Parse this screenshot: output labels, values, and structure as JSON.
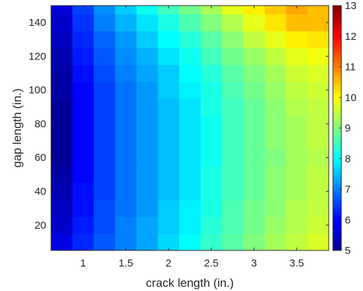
{
  "chart_data": {
    "type": "heatmap",
    "title": "",
    "xlabel": "crack length (in.)",
    "ylabel": "gap length (in.)",
    "xlim": [
      0.625,
      3.875
    ],
    "ylim": [
      5,
      150
    ],
    "x_ticks": [
      1,
      1.5,
      2,
      2.5,
      3,
      3.5
    ],
    "x_tick_labels": [
      "1",
      "1.5",
      "2",
      "2.5",
      "3",
      "3.5"
    ],
    "y_ticks": [
      20,
      40,
      60,
      80,
      100,
      120,
      140
    ],
    "y_tick_labels": [
      "20",
      "40",
      "60",
      "80",
      "100",
      "120",
      "140"
    ],
    "x": [
      0.75,
      1.0,
      1.25,
      1.5,
      1.75,
      2.0,
      2.25,
      2.5,
      2.75,
      3.0,
      3.25,
      3.5,
      3.75
    ],
    "y": [
      10,
      20,
      30,
      40,
      50,
      60,
      70,
      80,
      90,
      100,
      110,
      120,
      130,
      140,
      150
    ],
    "z": [
      [
        5.8,
        6.3,
        6.7,
        7.0,
        7.3,
        7.7,
        8.0,
        8.4,
        8.7,
        9.0,
        9.3,
        9.5,
        9.7
      ],
      [
        5.6,
        6.2,
        6.6,
        7.0,
        7.3,
        7.6,
        7.9,
        8.3,
        8.6,
        8.9,
        9.2,
        9.4,
        9.6
      ],
      [
        5.5,
        6.1,
        6.6,
        6.9,
        7.2,
        7.6,
        7.9,
        8.2,
        8.6,
        8.9,
        9.1,
        9.4,
        9.5
      ],
      [
        5.4,
        6.1,
        6.5,
        6.9,
        7.2,
        7.5,
        7.8,
        8.2,
        8.5,
        8.8,
        9.1,
        9.3,
        9.5
      ],
      [
        5.3,
        6.0,
        6.5,
        6.9,
        7.2,
        7.5,
        7.8,
        8.2,
        8.5,
        8.8,
        9.1,
        9.3,
        9.5
      ],
      [
        5.2,
        6.0,
        6.5,
        6.9,
        7.2,
        7.5,
        7.8,
        8.1,
        8.5,
        8.8,
        9.0,
        9.3,
        9.4
      ],
      [
        5.2,
        6.0,
        6.5,
        6.9,
        7.2,
        7.5,
        7.8,
        8.1,
        8.5,
        8.8,
        9.1,
        9.3,
        9.5
      ],
      [
        5.2,
        6.0,
        6.5,
        6.9,
        7.2,
        7.5,
        7.8,
        8.1,
        8.5,
        8.8,
        9.1,
        9.3,
        9.5
      ],
      [
        5.2,
        6.0,
        6.5,
        6.9,
        7.2,
        7.5,
        7.8,
        8.2,
        8.5,
        8.8,
        9.1,
        9.4,
        9.5
      ],
      [
        5.3,
        6.0,
        6.5,
        6.9,
        7.2,
        7.6,
        7.9,
        8.2,
        8.6,
        8.9,
        9.2,
        9.5,
        9.6
      ],
      [
        5.3,
        6.1,
        6.6,
        7.0,
        7.3,
        7.6,
        8.0,
        8.3,
        8.7,
        9.0,
        9.3,
        9.6,
        9.7
      ],
      [
        5.4,
        6.2,
        6.7,
        7.1,
        7.4,
        7.8,
        8.1,
        8.5,
        8.9,
        9.2,
        9.5,
        9.8,
        9.9
      ],
      [
        5.5,
        6.3,
        6.8,
        7.2,
        7.6,
        8.0,
        8.3,
        8.7,
        9.1,
        9.5,
        9.8,
        10.1,
        10.2
      ],
      [
        5.6,
        6.4,
        7.0,
        7.4,
        7.8,
        8.2,
        8.6,
        9.0,
        9.4,
        9.8,
        10.2,
        10.5,
        10.5
      ],
      [
        5.7,
        6.5,
        7.1,
        7.6,
        8.1,
        8.5,
        8.9,
        9.3,
        9.8,
        10.1,
        10.4,
        10.7,
        10.5
      ]
    ],
    "colorbar": {
      "colormap": "jet",
      "min": 5,
      "max": 13,
      "ticks": [
        5,
        6,
        7,
        8,
        9,
        10,
        11,
        12,
        13
      ],
      "tick_labels": [
        "5",
        "6",
        "7",
        "8",
        "9",
        "10",
        "11",
        "12",
        "13"
      ]
    },
    "grid": false,
    "legend": "none"
  }
}
